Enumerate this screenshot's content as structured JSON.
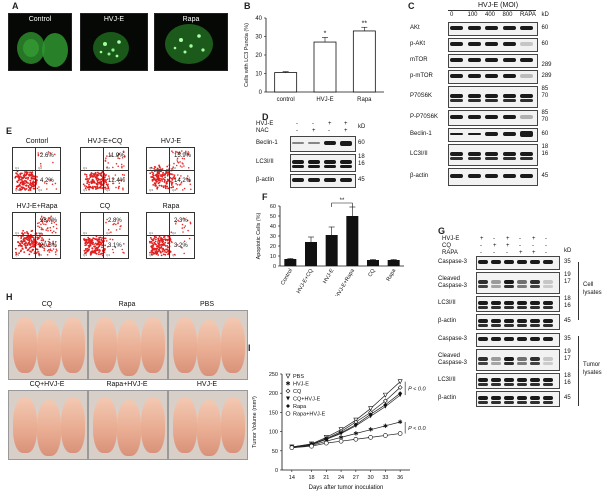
{
  "panels": {
    "A": "A",
    "B": "B",
    "C": "C",
    "D": "D",
    "E": "E",
    "F": "F",
    "G": "G",
    "H": "H",
    "I": "I"
  },
  "panelA": {
    "labels": [
      "Control",
      "HVJ-E",
      "Rapa"
    ]
  },
  "panelB": {
    "chart_data": {
      "type": "bar",
      "categories": [
        "control",
        "HVJ-E",
        "Rapa"
      ],
      "values": [
        10.5,
        27,
        33
      ],
      "errors": [
        0.5,
        2.5,
        2
      ],
      "ylabel": "Cells with LC3 Puncta (%)",
      "ylim": [
        0,
        40
      ],
      "yticks": [
        0,
        10,
        20,
        30,
        40
      ],
      "annotations": [
        "*",
        "**"
      ]
    }
  },
  "panelC": {
    "title": "HVJ-E (MOI)",
    "lanes": [
      "0",
      "100",
      "400",
      "800",
      "RAPA"
    ],
    "kd_header": "kD",
    "rows": [
      {
        "label": "AKt",
        "kd": "60"
      },
      {
        "label": "p-AKt",
        "kd": "60"
      },
      {
        "label": "mTOR",
        "kd": ""
      },
      {
        "label": "p-mTOR",
        "kd": "289"
      },
      {
        "label": "P70S6K",
        "kd": "85\n70"
      },
      {
        "label": "P-P70S6K",
        "kd": "85\n70"
      },
      {
        "label": "Beclin-1",
        "kd": "60"
      },
      {
        "label": "LC3I/II",
        "kd": "18\n16"
      },
      {
        "label": "β-actin",
        "kd": "45"
      }
    ],
    "extra_kd": "289"
  },
  "panelD": {
    "row_labels": [
      "HVJ-E",
      "NAC"
    ],
    "signs": [
      [
        "-",
        "-",
        "+",
        "+"
      ],
      [
        "-",
        "+",
        "-",
        "+"
      ]
    ],
    "kd_header": "kD",
    "rows": [
      {
        "label": "Beclin-1",
        "kd": "60"
      },
      {
        "label": "LC3I/II",
        "kd": "18\n16"
      },
      {
        "label": "β-actin",
        "kd": "45"
      }
    ]
  },
  "panelE": {
    "plots": [
      {
        "label": "Contorl",
        "q1": "2.6%",
        "q4": "4.2%"
      },
      {
        "label": "HVJ-E+CQ",
        "q1": "11.9%",
        "q4": "12.4%"
      },
      {
        "label": "HVJ-E",
        "q1": "15.9%",
        "q4": "14.2%"
      },
      {
        "label": "HVJ-E+Rapa",
        "q1": "28.7%",
        "q4": "20.8%"
      },
      {
        "label": "CQ",
        "q1": "2.8%",
        "q4": "3.1%"
      },
      {
        "label": "Rapa",
        "q1": "2.3%",
        "q4": "3.2%"
      }
    ],
    "quadrants": [
      "Q1",
      "Q2",
      "Q3",
      "Q4"
    ]
  },
  "panelF": {
    "chart_data": {
      "type": "bar",
      "categories": [
        "Control",
        "HVJ-E+CQ",
        "HVJ-E",
        "HVJ-E+Rapa",
        "CQ",
        "Rapa"
      ],
      "values": [
        7,
        24,
        31,
        50,
        6,
        6
      ],
      "errors": [
        0.5,
        5,
        8,
        9,
        0.5,
        0.5
      ],
      "ylabel": "Apoptotic Cells (%)",
      "ylim": [
        0,
        60
      ],
      "yticks": [
        0,
        10,
        20,
        30,
        40,
        50,
        60
      ],
      "annotation": "**"
    }
  },
  "panelG": {
    "row_labels": [
      "HVJ-E",
      "CQ",
      "RAPA"
    ],
    "signs": [
      [
        "+",
        "-",
        "+",
        "-",
        "+",
        "-"
      ],
      [
        "-",
        "+",
        "+",
        "-",
        "-",
        "-"
      ],
      [
        "-",
        "-",
        "-",
        "+",
        "+",
        "-"
      ]
    ],
    "kd_header": "kD",
    "cell_rows": [
      {
        "label": "Caspase-3",
        "kd": "35"
      },
      {
        "label": "Cleaved\nCaspase-3",
        "kd": "19\n17"
      },
      {
        "label": "LC3I/II",
        "kd": "18\n16"
      },
      {
        "label": "β-actin",
        "kd": "45"
      }
    ],
    "tumor_rows": [
      {
        "label": "Caspase-3",
        "kd": "35"
      },
      {
        "label": "Cleaved\nCaspase-3",
        "kd": "19\n17"
      },
      {
        "label": "LC3I/II",
        "kd": "18\n16"
      },
      {
        "label": "β-actin",
        "kd": "45"
      }
    ],
    "group_cell": "Cell\nlysates",
    "group_tumor": "Tumor\nlysates"
  },
  "panelH": {
    "labels": [
      "CQ",
      "Rapa",
      "PBS",
      "CQ+HVJ-E",
      "Rapa+HVJ-E",
      "HVJ-E"
    ]
  },
  "panelI": {
    "chart_data": {
      "type": "line",
      "x": [
        14,
        18,
        21,
        24,
        27,
        30,
        33,
        36
      ],
      "xlabel": "Days after tumor inoculation",
      "ylabel": "Tumor Volume (mm³)",
      "ylim": [
        0,
        250
      ],
      "yticks": [
        0,
        50,
        100,
        150,
        200,
        250
      ],
      "series": [
        {
          "name": "PBS",
          "values": [
            60,
            68,
            85,
            105,
            130,
            160,
            195,
            230
          ],
          "marker": "tri-down-open"
        },
        {
          "name": "HVJ-E",
          "values": [
            58,
            64,
            75,
            85,
            95,
            105,
            115,
            125
          ],
          "marker": "star"
        },
        {
          "name": "CQ",
          "values": [
            60,
            67,
            82,
            100,
            125,
            150,
            180,
            215
          ],
          "marker": "diamond-open"
        },
        {
          "name": "CQ+HVJ-E",
          "values": [
            58,
            66,
            80,
            95,
            115,
            140,
            165,
            195
          ],
          "marker": "tri-down-filled"
        },
        {
          "name": "Rapa",
          "values": [
            58,
            66,
            80,
            97,
            118,
            145,
            170,
            200
          ],
          "marker": "diamond-filled"
        },
        {
          "name": "Rapa+HVJ-E",
          "values": [
            58,
            62,
            70,
            75,
            80,
            85,
            90,
            95
          ],
          "marker": "circle-open"
        }
      ],
      "annotations": [
        "P < 0.05",
        "P < 0.05"
      ]
    }
  }
}
